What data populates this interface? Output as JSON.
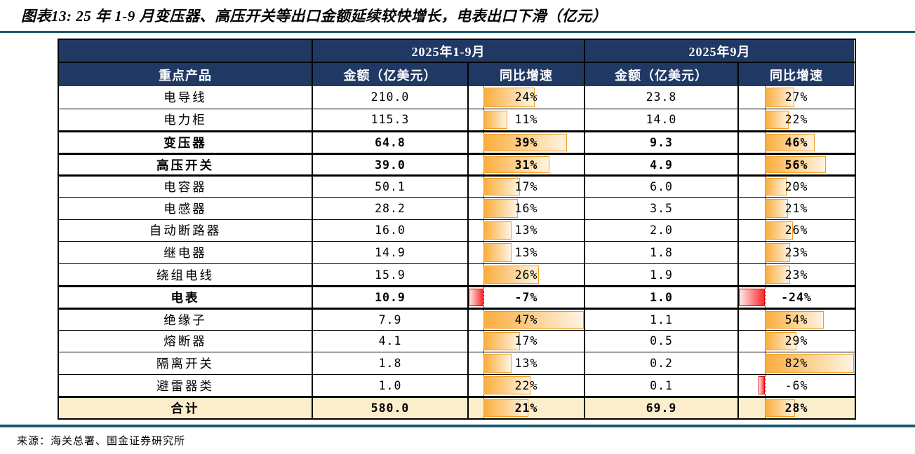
{
  "title": "图表13: 25 年 1-9 月变压器、高压开关等出口金额延续较快增长，电表出口下滑（亿元）",
  "source": "来源：海关总署、国金证券研究所",
  "colors": {
    "rule": "#175A6E",
    "header_bg": "#203864",
    "header_text": "#FFFFFF",
    "grid": "#000000",
    "total_row_bg": "#FCEECB",
    "bar_pos": "#FBAD3C",
    "bar_pos_fade": "#FEF4E2",
    "bar_pos_edge": "#F29D21",
    "bar_neg": "#F92B2B",
    "bar_neg_fade": "#FFE9E9",
    "bar_neg_edge": "#E00000"
  },
  "table": {
    "col_groups": [
      "2025年1-9月",
      "2025年9月"
    ],
    "sub_headers": [
      "重点产品",
      "金额（亿美元）",
      "同比增速",
      "金额（亿美元）",
      "同比增速"
    ],
    "rows": [
      {
        "name": "电导线",
        "amt_ytd": "210.0",
        "pct_ytd": 24,
        "amt_sep": "23.8",
        "pct_sep": 27,
        "heavy": false,
        "total": false
      },
      {
        "name": "电力柜",
        "amt_ytd": "115.3",
        "pct_ytd": 11,
        "amt_sep": "14.0",
        "pct_sep": 22,
        "heavy": false,
        "total": false
      },
      {
        "name": "变压器",
        "amt_ytd": "64.8",
        "pct_ytd": 39,
        "amt_sep": "9.3",
        "pct_sep": 46,
        "heavy": true,
        "total": false
      },
      {
        "name": "高压开关",
        "amt_ytd": "39.0",
        "pct_ytd": 31,
        "amt_sep": "4.9",
        "pct_sep": 56,
        "heavy": true,
        "total": false
      },
      {
        "name": "电容器",
        "amt_ytd": "50.1",
        "pct_ytd": 17,
        "amt_sep": "6.0",
        "pct_sep": 20,
        "heavy": false,
        "total": false
      },
      {
        "name": "电感器",
        "amt_ytd": "28.2",
        "pct_ytd": 16,
        "amt_sep": "3.5",
        "pct_sep": 21,
        "heavy": false,
        "total": false
      },
      {
        "name": "自动断路器",
        "amt_ytd": "16.0",
        "pct_ytd": 13,
        "amt_sep": "2.0",
        "pct_sep": 26,
        "heavy": false,
        "total": false
      },
      {
        "name": "继电器",
        "amt_ytd": "14.9",
        "pct_ytd": 13,
        "amt_sep": "1.8",
        "pct_sep": 23,
        "heavy": false,
        "total": false
      },
      {
        "name": "绕组电线",
        "amt_ytd": "15.9",
        "pct_ytd": 26,
        "amt_sep": "1.9",
        "pct_sep": 23,
        "heavy": false,
        "total": false
      },
      {
        "name": "电表",
        "amt_ytd": "10.9",
        "pct_ytd": -7,
        "amt_sep": "1.0",
        "pct_sep": -24,
        "heavy": true,
        "total": false
      },
      {
        "name": "绝缘子",
        "amt_ytd": "7.9",
        "pct_ytd": 47,
        "amt_sep": "1.1",
        "pct_sep": 54,
        "heavy": false,
        "total": false
      },
      {
        "name": "熔断器",
        "amt_ytd": "4.1",
        "pct_ytd": 17,
        "amt_sep": "0.5",
        "pct_sep": 29,
        "heavy": false,
        "total": false
      },
      {
        "name": "隔离开关",
        "amt_ytd": "1.8",
        "pct_ytd": 13,
        "amt_sep": "0.2",
        "pct_sep": 82,
        "heavy": false,
        "total": false
      },
      {
        "name": "避雷器类",
        "amt_ytd": "1.0",
        "pct_ytd": 22,
        "amt_sep": "0.1",
        "pct_sep": -6,
        "heavy": false,
        "total": false
      },
      {
        "name": "合计",
        "amt_ytd": "580.0",
        "pct_ytd": 21,
        "amt_sep": "69.9",
        "pct_sep": 28,
        "heavy": true,
        "total": true
      }
    ]
  },
  "chart_data": {
    "type": "table",
    "title": "图表13: 25 年 1-9 月变压器、高压开关等出口金额延续较快增长，电表出口下滑（亿元）",
    "source": "来源：海关总署、国金证券研究所",
    "column_groups": [
      "2025年1-9月",
      "2025年9月"
    ],
    "columns": [
      "重点产品",
      "金额（亿美元）",
      "同比增速",
      "金额（亿美元）",
      "同比增速"
    ],
    "categories": [
      "电导线",
      "电力柜",
      "变压器",
      "高压开关",
      "电容器",
      "电感器",
      "自动断路器",
      "继电器",
      "绕组电线",
      "电表",
      "绝缘子",
      "熔断器",
      "隔离开关",
      "避雷器类",
      "合计"
    ],
    "series": [
      {
        "name": "2025年1-9月 金额（亿美元）",
        "values": [
          210.0,
          115.3,
          64.8,
          39.0,
          50.1,
          28.2,
          16.0,
          14.9,
          15.9,
          10.9,
          7.9,
          4.1,
          1.8,
          1.0,
          580.0
        ]
      },
      {
        "name": "2025年1-9月 同比增速(%)",
        "values": [
          24,
          11,
          39,
          31,
          17,
          16,
          13,
          13,
          26,
          -7,
          47,
          17,
          13,
          22,
          21
        ]
      },
      {
        "name": "2025年9月 金额（亿美元）",
        "values": [
          23.8,
          14.0,
          9.3,
          4.9,
          6.0,
          3.5,
          2.0,
          1.8,
          1.9,
          1.0,
          1.1,
          0.5,
          0.2,
          0.1,
          69.9
        ]
      },
      {
        "name": "2025年9月 同比增速(%)",
        "values": [
          27,
          22,
          46,
          56,
          20,
          21,
          26,
          23,
          23,
          -24,
          54,
          29,
          82,
          -6,
          28
        ]
      }
    ],
    "databar_style": "in-cell gradient data bars; positive orange rightward from dashed zero axis, negative red leftward; axis position proportional to column min/max",
    "emphasized_rows": [
      "变压器",
      "高压开关",
      "电表",
      "合计"
    ]
  }
}
